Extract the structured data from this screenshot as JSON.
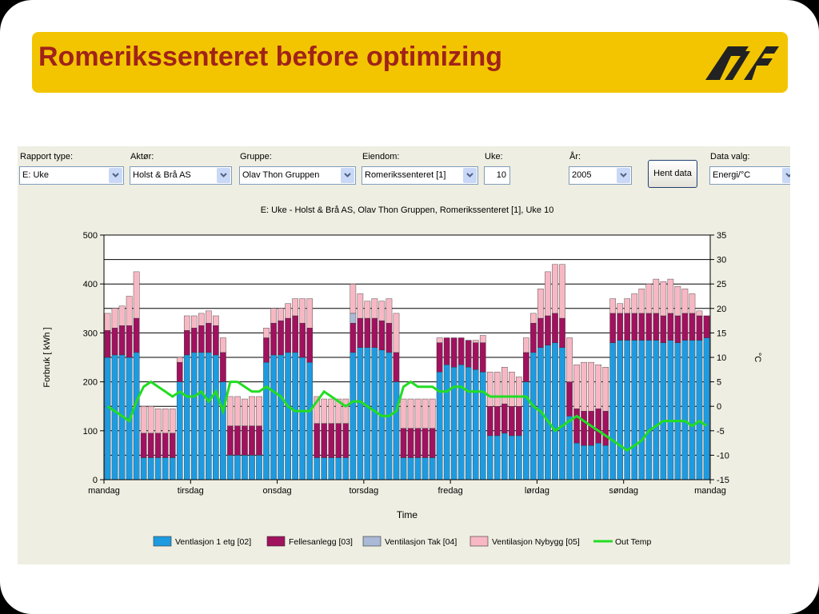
{
  "header": {
    "title": "Romerikssenteret before optimizing"
  },
  "form": {
    "fields": [
      {
        "label": "Rapport type:",
        "value": "E: Uke"
      },
      {
        "label": "Aktør:",
        "value": "Holst & Brå AS"
      },
      {
        "label": "Gruppe:",
        "value": "Olav Thon Gruppen"
      },
      {
        "label": "Eiendom:",
        "value": "Romerikssenteret [1]"
      },
      {
        "label": "Uke:",
        "value": "10"
      },
      {
        "label": "År:",
        "value": "2005"
      },
      {
        "label": "Data valg:",
        "value": "Energi/°C"
      }
    ],
    "button": "Hent data"
  },
  "chart_data": {
    "type": "bar",
    "stacked": true,
    "title": "E: Uke - Holst & Brå AS, Olav Thon Gruppen, Romerikssenteret [1],  Uke 10",
    "xlabel": "Time",
    "ylabel": "Forbruk [ kWh ]",
    "y2label": "°C",
    "x": [
      0,
      2,
      4,
      6,
      8,
      10,
      12,
      14,
      16,
      18,
      20,
      22,
      24,
      26,
      28,
      30,
      32,
      34,
      36,
      38,
      40,
      42,
      44,
      46,
      48,
      50,
      52,
      54,
      56,
      58,
      60,
      62,
      64,
      66,
      68,
      70,
      72,
      74,
      76,
      78,
      80,
      82,
      84,
      86,
      88,
      90,
      92,
      94,
      96,
      98,
      100,
      102,
      104,
      106,
      108,
      110,
      112,
      114,
      116,
      118,
      120,
      122,
      124,
      126,
      128,
      130,
      132,
      134,
      136,
      138,
      140,
      142,
      144,
      146,
      148,
      150,
      152,
      154,
      156,
      158,
      160,
      162,
      164,
      166
    ],
    "xlim": [
      0,
      168
    ],
    "xticks": [
      {
        "value": 0,
        "label": "mandag"
      },
      {
        "value": 24,
        "label": "tirsdag"
      },
      {
        "value": 48,
        "label": "onsdag"
      },
      {
        "value": 72,
        "label": "torsdag"
      },
      {
        "value": 96,
        "label": "fredag"
      },
      {
        "value": 120,
        "label": "lørdag"
      },
      {
        "value": 144,
        "label": "søndag"
      },
      {
        "value": 168,
        "label": "mandag"
      }
    ],
    "ylim": [
      0,
      500
    ],
    "yticks": [
      0,
      100,
      200,
      300,
      400,
      500
    ],
    "y2lim": [
      -15,
      35
    ],
    "y2ticks": [
      -15,
      -10,
      -5,
      0,
      5,
      10,
      15,
      20,
      25,
      30,
      35
    ],
    "grid": true,
    "legend": "bottom",
    "series": [
      {
        "name": "Ventlasjon 1 etg [02]",
        "color": "#1e9be0",
        "type": "bar",
        "values": [
          250,
          255,
          255,
          250,
          260,
          45,
          45,
          45,
          45,
          45,
          200,
          255,
          260,
          260,
          260,
          255,
          200,
          50,
          50,
          50,
          50,
          50,
          240,
          255,
          255,
          260,
          260,
          250,
          240,
          45,
          45,
          45,
          45,
          45,
          260,
          270,
          270,
          270,
          265,
          260,
          200,
          45,
          45,
          45,
          45,
          45,
          220,
          235,
          230,
          235,
          230,
          225,
          220,
          90,
          90,
          95,
          90,
          90,
          200,
          260,
          270,
          275,
          280,
          270,
          130,
          75,
          70,
          70,
          75,
          70,
          280,
          285,
          285,
          285,
          285,
          285,
          285,
          280,
          285,
          280,
          285,
          285,
          285,
          290
        ]
      },
      {
        "name": "Fellesanlegg [03]",
        "color": "#a0115e",
        "type": "bar",
        "values": [
          55,
          55,
          60,
          65,
          70,
          50,
          50,
          50,
          50,
          50,
          40,
          50,
          50,
          55,
          60,
          60,
          60,
          60,
          60,
          60,
          60,
          60,
          50,
          65,
          70,
          70,
          75,
          70,
          70,
          70,
          70,
          70,
          70,
          70,
          60,
          60,
          60,
          60,
          60,
          60,
          60,
          60,
          60,
          60,
          60,
          60,
          60,
          55,
          60,
          55,
          55,
          55,
          60,
          60,
          60,
          60,
          60,
          60,
          60,
          60,
          60,
          60,
          60,
          60,
          70,
          70,
          70,
          70,
          70,
          70,
          60,
          55,
          55,
          55,
          55,
          55,
          55,
          55,
          55,
          55,
          55,
          55,
          50,
          45
        ]
      },
      {
        "name": "Ventilasjon Tak [04]",
        "color": "#a9b9d6",
        "type": "bar",
        "values": [
          0,
          0,
          0,
          0,
          0,
          0,
          0,
          0,
          0,
          0,
          0,
          0,
          0,
          0,
          0,
          0,
          0,
          0,
          0,
          0,
          0,
          0,
          0,
          0,
          0,
          0,
          0,
          0,
          0,
          0,
          0,
          0,
          0,
          0,
          20,
          0,
          0,
          0,
          0,
          0,
          0,
          0,
          0,
          0,
          0,
          0,
          0,
          0,
          0,
          0,
          0,
          0,
          0,
          0,
          0,
          0,
          0,
          0,
          0,
          0,
          0,
          0,
          0,
          0,
          0,
          0,
          0,
          0,
          0,
          0,
          0,
          0,
          0,
          0,
          0,
          0,
          0,
          0,
          0,
          0,
          0,
          0,
          0,
          0
        ]
      },
      {
        "name": "Ventilasjon Nybygg [05]",
        "color": "#f7b8c4",
        "type": "bar",
        "values": [
          35,
          40,
          40,
          60,
          95,
          55,
          55,
          50,
          50,
          50,
          10,
          30,
          25,
          25,
          25,
          20,
          30,
          60,
          60,
          55,
          60,
          60,
          20,
          30,
          25,
          30,
          35,
          50,
          60,
          55,
          50,
          50,
          50,
          50,
          60,
          50,
          35,
          40,
          40,
          50,
          80,
          60,
          60,
          60,
          60,
          60,
          10,
          0,
          0,
          0,
          0,
          5,
          15,
          70,
          70,
          75,
          70,
          60,
          30,
          20,
          60,
          90,
          100,
          110,
          90,
          90,
          100,
          100,
          90,
          90,
          30,
          20,
          30,
          40,
          50,
          60,
          70,
          70,
          70,
          60,
          50,
          40,
          10,
          0
        ]
      },
      {
        "name": "Out Temp",
        "color": "#22dd22",
        "type": "line",
        "axis": "y2",
        "values": [
          0,
          -1,
          -2,
          -3,
          1,
          4,
          5,
          4,
          3,
          2,
          3,
          2,
          2,
          3,
          1,
          3,
          -1,
          5,
          5,
          4,
          3,
          3,
          4,
          3,
          2,
          0,
          -1,
          -1,
          -1,
          1,
          3,
          2,
          1,
          0,
          1,
          1,
          0,
          -1,
          -2,
          -2,
          -1,
          4,
          5,
          4,
          4,
          4,
          3,
          3,
          4,
          4,
          3,
          3,
          3,
          2,
          2,
          2,
          2,
          2,
          2,
          0,
          -1,
          -3,
          -5,
          -4,
          -3,
          -2,
          -3,
          -4,
          -5,
          -6,
          -7,
          -8,
          -9,
          -8,
          -7,
          -5,
          -4,
          -3,
          -3,
          -3,
          -3,
          -4,
          -3,
          -4
        ]
      }
    ]
  }
}
